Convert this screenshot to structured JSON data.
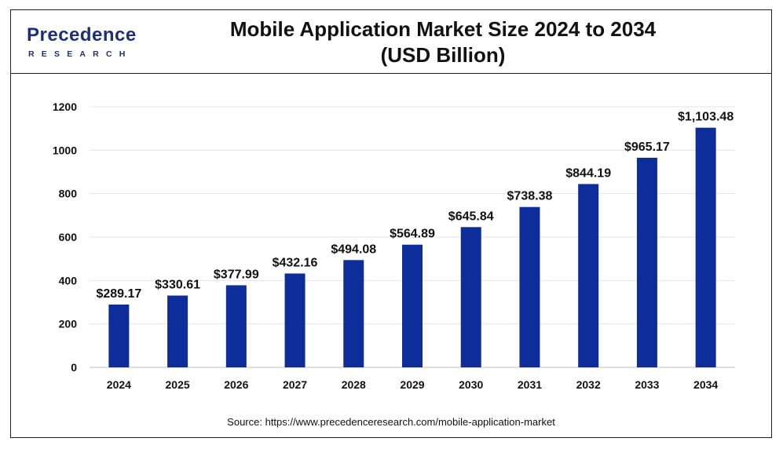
{
  "brand": {
    "name": "Precedence",
    "sub": "RESEARCH",
    "primary_color": "#1b2f7a",
    "accent_color": "#2e8bd6"
  },
  "chart_data": {
    "type": "bar",
    "title_line1": "Mobile Application Market Size 2024 to 2034",
    "title_line2": "(USD Billion)",
    "categories": [
      "2024",
      "2025",
      "2026",
      "2027",
      "2028",
      "2029",
      "2030",
      "2031",
      "2032",
      "2033",
      "2034"
    ],
    "values": [
      289.17,
      330.61,
      377.99,
      432.16,
      494.08,
      564.89,
      645.84,
      738.38,
      844.19,
      965.17,
      1103.48
    ],
    "data_labels": [
      "$289.17",
      "$330.61",
      "$377.99",
      "$432.16",
      "$494.08",
      "$564.89",
      "$645.84",
      "$738.38",
      "$844.19",
      "$965.17",
      "$1,103.48"
    ],
    "ylim": [
      0,
      1200
    ],
    "yticks": [
      0,
      200,
      400,
      600,
      800,
      1000,
      1200
    ],
    "grid": true,
    "bar_color": "#0d2d9a",
    "xlabel": "",
    "ylabel": ""
  },
  "source": "Source: https://www.precedenceresearch.com/mobile-application-market"
}
